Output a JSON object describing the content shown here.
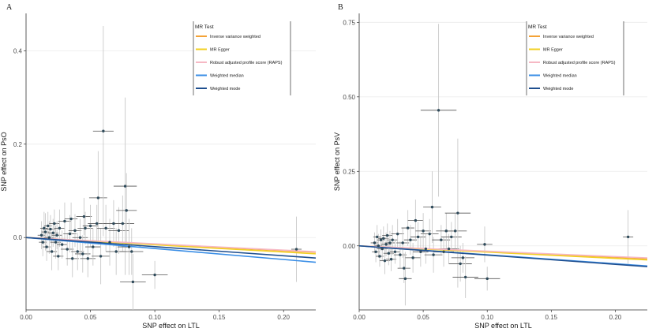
{
  "colors": {
    "point": "#2e4a5a",
    "errorbar": "#c9c9c9",
    "grid": "#ececec",
    "axis": "#333333"
  },
  "legend": {
    "title": "MR Test",
    "items": [
      {
        "label": "Inverse variance weighted",
        "color": "#f4a236"
      },
      {
        "label": "MR Egger",
        "color": "#f2d022"
      },
      {
        "label": "Robust adjusted profile score (RAPS)",
        "color": "#f6b8c4"
      },
      {
        "label": "Weighted median",
        "color": "#3a8ee6"
      },
      {
        "label": "Weighted mode",
        "color": "#1f4f8f"
      }
    ]
  },
  "chart_data": [
    {
      "panel": "A",
      "type": "scatter",
      "xlabel": "SNP effect on LTL",
      "ylabel": "SNP effect on PsO",
      "xlim": [
        0.0,
        0.225
      ],
      "ylim": [
        -0.155,
        0.48
      ],
      "xticks": [
        "0.00",
        "0.05",
        "0.10",
        "0.15",
        "0.20"
      ],
      "xtick_values": [
        0.0,
        0.05,
        0.1,
        0.15,
        0.2
      ],
      "yticks": [
        "0.0",
        "0.2",
        "0.4"
      ],
      "ytick_values": [
        0.0,
        0.2,
        0.4
      ],
      "lines": [
        {
          "method": "Inverse variance weighted",
          "slope": -0.14
        },
        {
          "method": "MR Egger",
          "slope": -0.155
        },
        {
          "method": "Robust adjusted profile score (RAPS)",
          "slope": -0.135
        },
        {
          "method": "Weighted median",
          "slope": -0.235
        },
        {
          "method": "Weighted mode",
          "slope": -0.195
        }
      ],
      "points": [
        {
          "x": 0.012,
          "y": 0.005,
          "xerr": 0.003,
          "yerr": 0.03
        },
        {
          "x": 0.013,
          "y": -0.01,
          "xerr": 0.003,
          "yerr": 0.03
        },
        {
          "x": 0.014,
          "y": 0.02,
          "xerr": 0.003,
          "yerr": 0.035
        },
        {
          "x": 0.015,
          "y": 0.012,
          "xerr": 0.003,
          "yerr": 0.04
        },
        {
          "x": 0.016,
          "y": -0.02,
          "xerr": 0.003,
          "yerr": 0.03
        },
        {
          "x": 0.017,
          "y": 0.025,
          "xerr": 0.003,
          "yerr": 0.03
        },
        {
          "x": 0.018,
          "y": 0.0,
          "xerr": 0.004,
          "yerr": 0.035
        },
        {
          "x": 0.019,
          "y": 0.018,
          "xerr": 0.004,
          "yerr": 0.03
        },
        {
          "x": 0.02,
          "y": -0.03,
          "xerr": 0.004,
          "yerr": 0.04
        },
        {
          "x": 0.021,
          "y": 0.01,
          "xerr": 0.004,
          "yerr": 0.03
        },
        {
          "x": 0.022,
          "y": 0.03,
          "xerr": 0.004,
          "yerr": 0.03
        },
        {
          "x": 0.023,
          "y": -0.01,
          "xerr": 0.004,
          "yerr": 0.035
        },
        {
          "x": 0.024,
          "y": 0.005,
          "xerr": 0.004,
          "yerr": 0.03
        },
        {
          "x": 0.025,
          "y": -0.04,
          "xerr": 0.004,
          "yerr": 0.03
        },
        {
          "x": 0.026,
          "y": 0.02,
          "xerr": 0.004,
          "yerr": 0.04
        },
        {
          "x": 0.028,
          "y": -0.015,
          "xerr": 0.004,
          "yerr": 0.03
        },
        {
          "x": 0.03,
          "y": 0.035,
          "xerr": 0.005,
          "yerr": 0.04
        },
        {
          "x": 0.032,
          "y": -0.025,
          "xerr": 0.005,
          "yerr": 0.035
        },
        {
          "x": 0.034,
          "y": 0.008,
          "xerr": 0.005,
          "yerr": 0.04
        },
        {
          "x": 0.035,
          "y": 0.04,
          "xerr": 0.005,
          "yerr": 0.035
        },
        {
          "x": 0.036,
          "y": -0.045,
          "xerr": 0.005,
          "yerr": 0.04
        },
        {
          "x": 0.038,
          "y": 0.015,
          "xerr": 0.005,
          "yerr": 0.035
        },
        {
          "x": 0.04,
          "y": -0.03,
          "xerr": 0.005,
          "yerr": 0.04
        },
        {
          "x": 0.042,
          "y": 0.0,
          "xerr": 0.006,
          "yerr": 0.04
        },
        {
          "x": 0.044,
          "y": -0.035,
          "xerr": 0.006,
          "yerr": 0.04
        },
        {
          "x": 0.045,
          "y": 0.045,
          "xerr": 0.006,
          "yerr": 0.04
        },
        {
          "x": 0.046,
          "y": 0.02,
          "xerr": 0.006,
          "yerr": 0.035
        },
        {
          "x": 0.048,
          "y": -0.045,
          "xerr": 0.006,
          "yerr": 0.04
        },
        {
          "x": 0.05,
          "y": 0.025,
          "xerr": 0.006,
          "yerr": 0.045
        },
        {
          "x": 0.052,
          "y": -0.02,
          "xerr": 0.006,
          "yerr": 0.04
        },
        {
          "x": 0.055,
          "y": 0.03,
          "xerr": 0.007,
          "yerr": 0.04
        },
        {
          "x": 0.056,
          "y": 0.085,
          "xerr": 0.007,
          "yerr": 0.1
        },
        {
          "x": 0.058,
          "y": -0.04,
          "xerr": 0.007,
          "yerr": 0.06
        },
        {
          "x": 0.06,
          "y": 0.228,
          "xerr": 0.008,
          "yerr": 0.225
        },
        {
          "x": 0.062,
          "y": 0.02,
          "xerr": 0.007,
          "yerr": 0.05
        },
        {
          "x": 0.065,
          "y": -0.01,
          "xerr": 0.008,
          "yerr": 0.05
        },
        {
          "x": 0.068,
          "y": 0.03,
          "xerr": 0.008,
          "yerr": 0.05
        },
        {
          "x": 0.07,
          "y": -0.03,
          "xerr": 0.008,
          "yerr": 0.05
        },
        {
          "x": 0.072,
          "y": 0.015,
          "xerr": 0.008,
          "yerr": 0.05
        },
        {
          "x": 0.075,
          "y": 0.03,
          "xerr": 0.009,
          "yerr": 0.06
        },
        {
          "x": 0.077,
          "y": 0.11,
          "xerr": 0.009,
          "yerr": 0.19
        },
        {
          "x": 0.078,
          "y": 0.058,
          "xerr": 0.008,
          "yerr": 0.08
        },
        {
          "x": 0.08,
          "y": -0.02,
          "xerr": 0.009,
          "yerr": 0.06
        },
        {
          "x": 0.082,
          "y": -0.03,
          "xerr": 0.009,
          "yerr": 0.05
        },
        {
          "x": 0.083,
          "y": -0.095,
          "xerr": 0.01,
          "yerr": 0.06
        },
        {
          "x": 0.1,
          "y": -0.08,
          "xerr": 0.01,
          "yerr": 0.03
        },
        {
          "x": 0.21,
          "y": -0.025,
          "xerr": 0.004,
          "yerr": 0.07
        }
      ]
    },
    {
      "panel": "B",
      "type": "scatter",
      "xlabel": "SNP effect on LTL",
      "ylabel": "SNP effect on PsV",
      "xlim": [
        0.0,
        0.225
      ],
      "ylim": [
        -0.215,
        0.78
      ],
      "xticks": [
        "0.00",
        "0.05",
        "0.10",
        "0.15",
        "0.20"
      ],
      "xtick_values": [
        0.0,
        0.05,
        0.1,
        0.15,
        0.2
      ],
      "yticks": [
        "0.00",
        "0.25",
        "0.50",
        "0.75"
      ],
      "ytick_values": [
        0.0,
        0.25,
        0.5,
        0.75
      ],
      "lines": [
        {
          "method": "Inverse variance weighted",
          "slope": -0.19
        },
        {
          "method": "MR Egger",
          "slope": -0.21
        },
        {
          "method": "Robust adjusted profile score (RAPS)",
          "slope": -0.18
        },
        {
          "method": "Weighted median",
          "slope": -0.3
        },
        {
          "method": "Weighted mode",
          "slope": -0.31
        }
      ],
      "points": [
        {
          "x": 0.012,
          "y": 0.01,
          "xerr": 0.003,
          "yerr": 0.035
        },
        {
          "x": 0.013,
          "y": -0.02,
          "xerr": 0.003,
          "yerr": 0.035
        },
        {
          "x": 0.014,
          "y": 0.03,
          "xerr": 0.003,
          "yerr": 0.04
        },
        {
          "x": 0.015,
          "y": 0.0,
          "xerr": 0.003,
          "yerr": 0.04
        },
        {
          "x": 0.016,
          "y": -0.035,
          "xerr": 0.003,
          "yerr": 0.035
        },
        {
          "x": 0.017,
          "y": 0.02,
          "xerr": 0.003,
          "yerr": 0.035
        },
        {
          "x": 0.018,
          "y": -0.01,
          "xerr": 0.004,
          "yerr": 0.04
        },
        {
          "x": 0.019,
          "y": 0.025,
          "xerr": 0.004,
          "yerr": 0.04
        },
        {
          "x": 0.02,
          "y": -0.05,
          "xerr": 0.004,
          "yerr": 0.045
        },
        {
          "x": 0.021,
          "y": 0.005,
          "xerr": 0.004,
          "yerr": 0.04
        },
        {
          "x": 0.022,
          "y": 0.035,
          "xerr": 0.004,
          "yerr": 0.04
        },
        {
          "x": 0.023,
          "y": -0.025,
          "xerr": 0.004,
          "yerr": 0.04
        },
        {
          "x": 0.024,
          "y": 0.01,
          "xerr": 0.004,
          "yerr": 0.04
        },
        {
          "x": 0.025,
          "y": -0.045,
          "xerr": 0.004,
          "yerr": 0.04
        },
        {
          "x": 0.026,
          "y": 0.02,
          "xerr": 0.004,
          "yerr": 0.05
        },
        {
          "x": 0.028,
          "y": -0.02,
          "xerr": 0.004,
          "yerr": 0.04
        },
        {
          "x": 0.03,
          "y": 0.04,
          "xerr": 0.005,
          "yerr": 0.05
        },
        {
          "x": 0.032,
          "y": -0.03,
          "xerr": 0.005,
          "yerr": 0.045
        },
        {
          "x": 0.034,
          "y": 0.01,
          "xerr": 0.005,
          "yerr": 0.05
        },
        {
          "x": 0.035,
          "y": -0.075,
          "xerr": 0.005,
          "yerr": 0.05
        },
        {
          "x": 0.036,
          "y": -0.11,
          "xerr": 0.005,
          "yerr": 0.09
        },
        {
          "x": 0.038,
          "y": 0.06,
          "xerr": 0.005,
          "yerr": 0.06
        },
        {
          "x": 0.04,
          "y": 0.02,
          "xerr": 0.005,
          "yerr": 0.05
        },
        {
          "x": 0.042,
          "y": -0.04,
          "xerr": 0.006,
          "yerr": 0.05
        },
        {
          "x": 0.044,
          "y": 0.085,
          "xerr": 0.006,
          "yerr": 0.07
        },
        {
          "x": 0.046,
          "y": 0.03,
          "xerr": 0.006,
          "yerr": 0.05
        },
        {
          "x": 0.048,
          "y": -0.02,
          "xerr": 0.006,
          "yerr": 0.05
        },
        {
          "x": 0.05,
          "y": 0.05,
          "xerr": 0.006,
          "yerr": 0.06
        },
        {
          "x": 0.052,
          "y": -0.01,
          "xerr": 0.006,
          "yerr": 0.05
        },
        {
          "x": 0.055,
          "y": 0.04,
          "xerr": 0.007,
          "yerr": 0.05
        },
        {
          "x": 0.057,
          "y": 0.13,
          "xerr": 0.007,
          "yerr": 0.12
        },
        {
          "x": 0.058,
          "y": -0.03,
          "xerr": 0.007,
          "yerr": 0.06
        },
        {
          "x": 0.062,
          "y": 0.455,
          "xerr": 0.014,
          "yerr": 0.29
        },
        {
          "x": 0.064,
          "y": 0.02,
          "xerr": 0.007,
          "yerr": 0.05
        },
        {
          "x": 0.066,
          "y": -0.02,
          "xerr": 0.008,
          "yerr": 0.05
        },
        {
          "x": 0.068,
          "y": 0.05,
          "xerr": 0.008,
          "yerr": 0.06
        },
        {
          "x": 0.07,
          "y": -0.01,
          "xerr": 0.008,
          "yerr": 0.05
        },
        {
          "x": 0.072,
          "y": 0.03,
          "xerr": 0.008,
          "yerr": 0.05
        },
        {
          "x": 0.075,
          "y": 0.05,
          "xerr": 0.009,
          "yerr": 0.06
        },
        {
          "x": 0.077,
          "y": 0.11,
          "xerr": 0.01,
          "yerr": 0.25
        },
        {
          "x": 0.079,
          "y": -0.06,
          "xerr": 0.009,
          "yerr": 0.06
        },
        {
          "x": 0.081,
          "y": -0.04,
          "xerr": 0.009,
          "yerr": 0.05
        },
        {
          "x": 0.083,
          "y": -0.105,
          "xerr": 0.01,
          "yerr": 0.07
        },
        {
          "x": 0.098,
          "y": 0.005,
          "xerr": 0.006,
          "yerr": 0.06
        },
        {
          "x": 0.1,
          "y": -0.11,
          "xerr": 0.01,
          "yerr": 0.04
        },
        {
          "x": 0.21,
          "y": 0.03,
          "xerr": 0.004,
          "yerr": 0.09
        }
      ]
    }
  ]
}
